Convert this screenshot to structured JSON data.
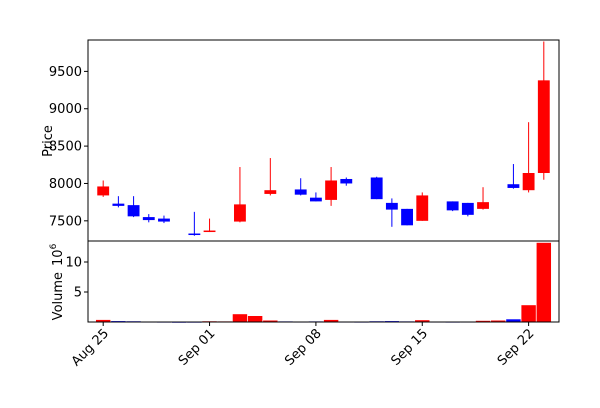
{
  "chart_data": [
    {
      "panel": "price",
      "type": "candlestick",
      "ylabel": "Price",
      "ylim": [
        7230,
        9920
      ],
      "yticks": [
        7500,
        8000,
        8500,
        9000,
        9500
      ],
      "up_color": "#ff0000",
      "down_color": "#0000ff",
      "candles": [
        {
          "date": "2023-08-25",
          "open": 7840,
          "high": 8040,
          "low": 7820,
          "close": 7960
        },
        {
          "date": "2023-08-26",
          "open": 7730,
          "high": 7830,
          "low": 7680,
          "close": 7700
        },
        {
          "date": "2023-08-27",
          "open": 7710,
          "high": 7830,
          "low": 7550,
          "close": 7560
        },
        {
          "date": "2023-08-28",
          "open": 7550,
          "high": 7590,
          "low": 7480,
          "close": 7510
        },
        {
          "date": "2023-08-29",
          "open": 7530,
          "high": 7570,
          "low": 7470,
          "close": 7490
        },
        {
          "date": "2023-08-31",
          "open": 7330,
          "high": 7620,
          "low": 7300,
          "close": 7310
        },
        {
          "date": "2023-09-01",
          "open": 7360,
          "high": 7530,
          "low": 7350,
          "close": 7370
        },
        {
          "date": "2023-09-03",
          "open": 7490,
          "high": 8220,
          "low": 7480,
          "close": 7720
        },
        {
          "date": "2023-09-05",
          "open": 7860,
          "high": 8340,
          "low": 7840,
          "close": 7910
        },
        {
          "date": "2023-09-07",
          "open": 7920,
          "high": 8070,
          "low": 7840,
          "close": 7850
        },
        {
          "date": "2023-09-08",
          "open": 7810,
          "high": 7880,
          "low": 7760,
          "close": 7760
        },
        {
          "date": "2023-09-09",
          "open": 7780,
          "high": 8220,
          "low": 7700,
          "close": 8040
        },
        {
          "date": "2023-09-10",
          "open": 8060,
          "high": 8080,
          "low": 7970,
          "close": 8000
        },
        {
          "date": "2023-09-12",
          "open": 8080,
          "high": 8090,
          "low": 7790,
          "close": 7790
        },
        {
          "date": "2023-09-13",
          "open": 7740,
          "high": 7800,
          "low": 7420,
          "close": 7650
        },
        {
          "date": "2023-09-14",
          "open": 7660,
          "high": 7660,
          "low": 7440,
          "close": 7440
        },
        {
          "date": "2023-09-15",
          "open": 7500,
          "high": 7880,
          "low": 7500,
          "close": 7840
        },
        {
          "date": "2023-09-17",
          "open": 7760,
          "high": 7760,
          "low": 7630,
          "close": 7640
        },
        {
          "date": "2023-09-18",
          "open": 7740,
          "high": 7740,
          "low": 7560,
          "close": 7580
        },
        {
          "date": "2023-09-19",
          "open": 7660,
          "high": 7950,
          "low": 7650,
          "close": 7750
        },
        {
          "date": "2023-09-21",
          "open": 7990,
          "high": 8260,
          "low": 7930,
          "close": 7940
        },
        {
          "date": "2023-09-22",
          "open": 7910,
          "high": 8820,
          "low": 7880,
          "close": 8140
        },
        {
          "date": "2023-09-23",
          "open": 8140,
          "high": 9900,
          "low": 8050,
          "close": 9380
        }
      ]
    },
    {
      "panel": "volume",
      "type": "bar",
      "ylabel": "Volume",
      "scale_label": "10",
      "scale_exponent": "6",
      "ylim": [
        0,
        13.5
      ],
      "yticks": [
        5,
        10
      ],
      "xticks": [
        "Aug 25",
        "Sep 01",
        "Sep 08",
        "Sep 15",
        "Sep 22"
      ],
      "xtick_dates": [
        "2023-08-25",
        "2023-09-01",
        "2023-09-08",
        "2023-09-15",
        "2023-09-22"
      ],
      "xlim": [
        "2023-08-24",
        "2023-09-24"
      ],
      "volume_dates": [
        "2023-08-25",
        "2023-08-26",
        "2023-08-27",
        "2023-08-28",
        "2023-08-29",
        "2023-08-30",
        "2023-08-31",
        "2023-09-01",
        "2023-09-02",
        "2023-09-03",
        "2023-09-04",
        "2023-09-05",
        "2023-09-06",
        "2023-09-07",
        "2023-09-08",
        "2023-09-09",
        "2023-09-10",
        "2023-09-11",
        "2023-09-12",
        "2023-09-13",
        "2023-09-14",
        "2023-09-15",
        "2023-09-16",
        "2023-09-17",
        "2023-09-18",
        "2023-09-19",
        "2023-09-20",
        "2023-09-21",
        "2023-09-22",
        "2023-09-23"
      ],
      "volumes": [
        0.35,
        0.15,
        0.12,
        0.08,
        0.07,
        0.05,
        0.06,
        0.12,
        0.1,
        1.3,
        1.0,
        0.25,
        0.1,
        0.08,
        0.1,
        0.35,
        0.08,
        0.07,
        0.12,
        0.15,
        0.1,
        0.3,
        0.08,
        0.07,
        0.08,
        0.2,
        0.25,
        0.45,
        2.8,
        13.2
      ],
      "volume_up": [
        true,
        false,
        false,
        false,
        false,
        false,
        false,
        true,
        true,
        true,
        true,
        true,
        false,
        false,
        false,
        true,
        false,
        false,
        false,
        false,
        false,
        true,
        false,
        false,
        false,
        true,
        true,
        false,
        true,
        true
      ]
    }
  ]
}
